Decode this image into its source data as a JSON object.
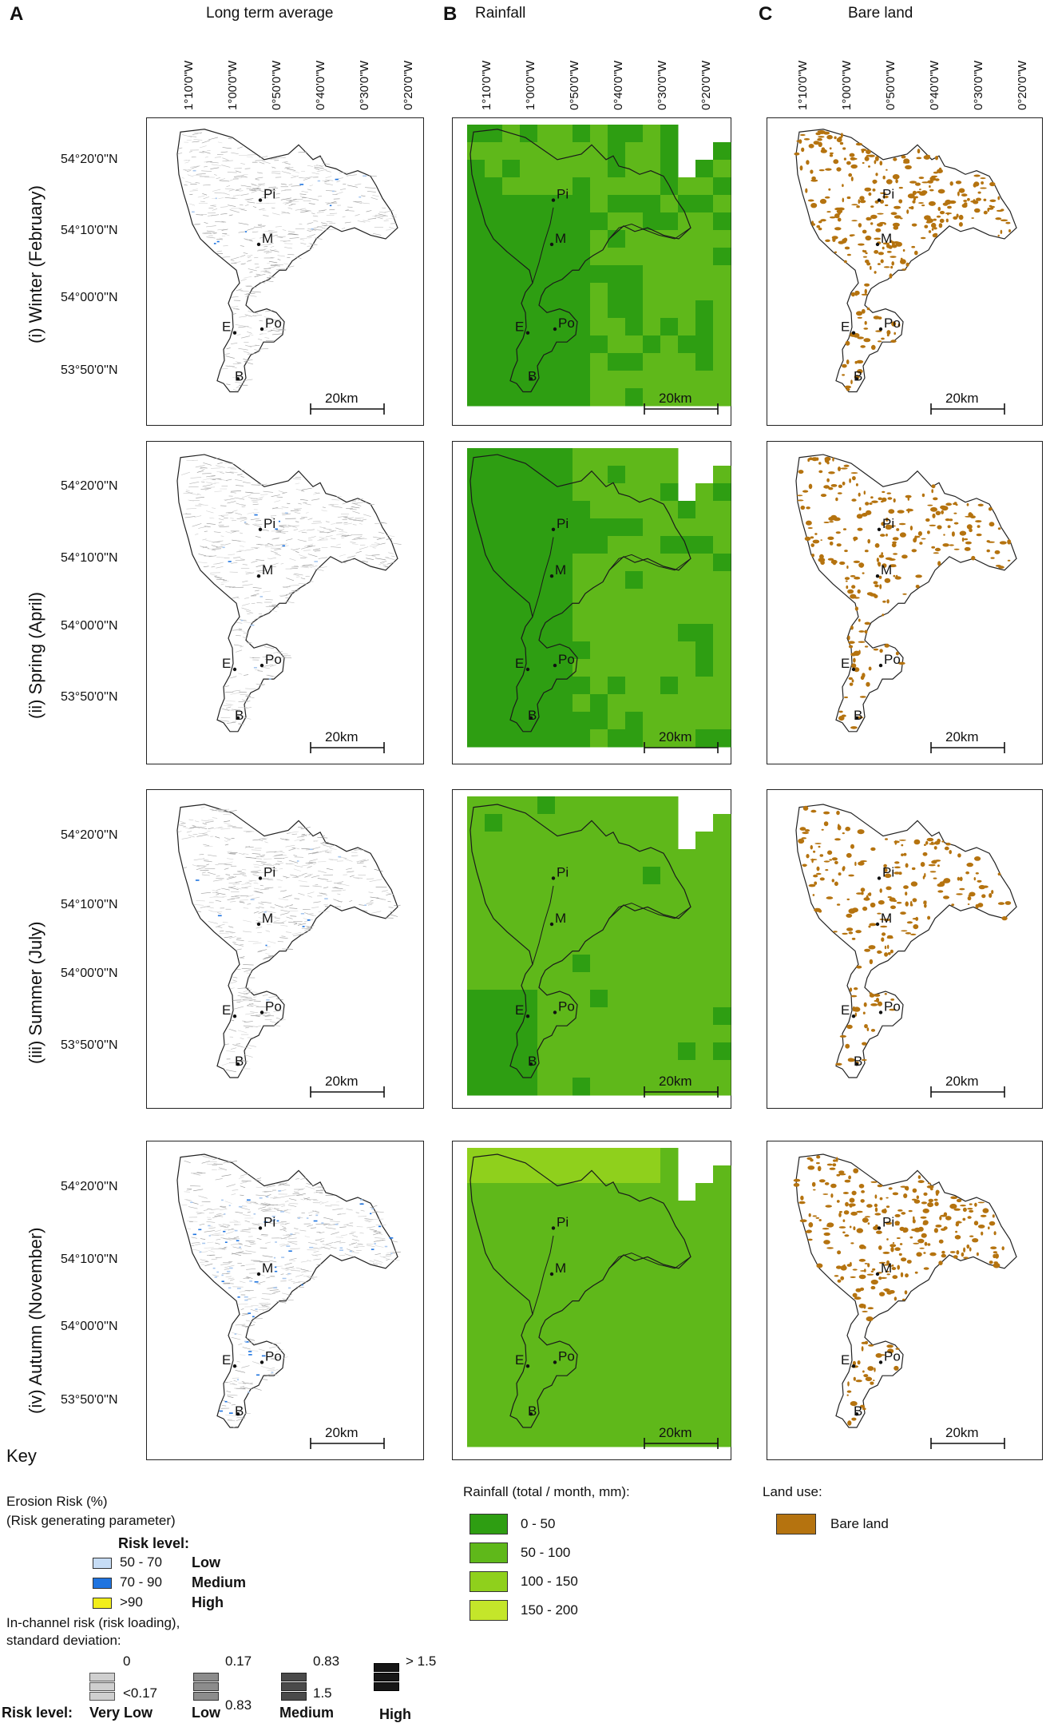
{
  "columns": [
    {
      "letter": "A",
      "title": "Long term average"
    },
    {
      "letter": "B",
      "title": "Rainfall"
    },
    {
      "letter": "C",
      "title": "Bare land"
    }
  ],
  "longitude_labels": [
    "1°10'0''W",
    "1°00'0''W",
    "0°50'0''W",
    "0°40'0''W",
    "0°30'0''W",
    "0°20'0''W"
  ],
  "latitude_labels": [
    "54°20'0''N",
    "54°10'0''N",
    "54°00'0''N",
    "53°50'0''N"
  ],
  "rows": [
    {
      "label": "(i) Winter (February)"
    },
    {
      "label": "(ii) Spring (April)"
    },
    {
      "label": "(iii) Summer (July)"
    },
    {
      "label": "(iv) Autumn (November)"
    }
  ],
  "towns": [
    "Pi",
    "M",
    "E",
    "Po",
    "B"
  ],
  "scale_bar": "20km",
  "key": {
    "title": "Key",
    "erosion": {
      "heading_1": "Erosion Risk (%)",
      "heading_2": "(Risk generating parameter)",
      "risk_level_heading": "Risk level:",
      "items": [
        {
          "range": "50 - 70",
          "level": "Low",
          "color": "#c6dcf5"
        },
        {
          "range": "70 - 90",
          "level": "Medium",
          "color": "#1f74e0"
        },
        {
          "range": ">90",
          "level": "High",
          "color": "#f2ee1a"
        }
      ]
    },
    "inchannel": {
      "heading_1": "In-channel risk (risk loading),",
      "heading_2": "standard deviation:",
      "items": [
        {
          "top": "0",
          "bottom": "<0.17",
          "level": "Very Low",
          "color": "#cfcfcf"
        },
        {
          "top": "0.17",
          "bottom": "0.83",
          "level": "Low",
          "color": "#8c8c8c"
        },
        {
          "top": "0.83",
          "bottom": "1.5",
          "level": "Medium",
          "color": "#4a4a4a"
        },
        {
          "top": "> 1.5",
          "bottom": "",
          "level": "High",
          "color": "#161616"
        }
      ],
      "risk_level_label": "Risk level:"
    },
    "rainfall": {
      "heading": "Rainfall (total / month, mm):",
      "items": [
        {
          "range": "0 - 50",
          "color": "#2e9e12"
        },
        {
          "range": "50 - 100",
          "color": "#5fb81a"
        },
        {
          "range": "100 - 150",
          "color": "#8fd01c"
        },
        {
          "range": "150 - 200",
          "color": "#c4e62a"
        }
      ]
    },
    "land_use": {
      "heading": "Land use:",
      "items": [
        {
          "label": "Bare land",
          "color": "#b5730f"
        }
      ]
    }
  }
}
